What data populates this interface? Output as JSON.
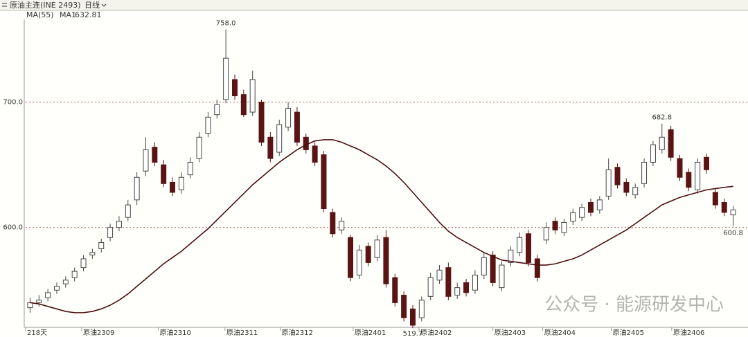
{
  "header": {
    "title": "原油主连(INE 2493)",
    "period": "日线"
  },
  "chart_data": {
    "type": "candlestick",
    "indicator": "MA(55)",
    "ma_name": "MA1",
    "watermark": "公众号 · 能源研发中心",
    "xlim": [
      0,
      80
    ],
    "ylim": [
      522,
      766
    ],
    "xticks": [
      {
        "value": 0,
        "label": "218天"
      },
      {
        "value": 6.3,
        "label": "原油2309"
      },
      {
        "value": 14.9,
        "label": "原油2310"
      },
      {
        "value": 22.4,
        "label": "原油2311"
      },
      {
        "value": 28.6,
        "label": "原油2312"
      },
      {
        "value": 36.8,
        "label": "原油2401"
      },
      {
        "value": 44.2,
        "label": "原油2402"
      },
      {
        "value": 52.5,
        "label": "原油2403"
      },
      {
        "value": 58.1,
        "label": "原油2404"
      },
      {
        "value": 65.8,
        "label": "原油2405"
      },
      {
        "value": 72.6,
        "label": "原油2406"
      }
    ],
    "yticks": [
      {
        "value": 700,
        "label": "700.0"
      },
      {
        "value": 600,
        "label": "600.0"
      }
    ],
    "grid": true,
    "up_color": "#ffffff",
    "down_color": "#5a1414",
    "open": [
      536,
      540,
      544,
      550,
      555,
      560,
      568,
      578,
      583,
      592,
      600,
      608,
      622,
      645,
      664,
      650,
      636,
      630,
      642,
      655,
      675,
      690,
      702,
      718,
      706,
      692,
      700,
      672,
      660,
      680,
      692,
      672,
      665,
      658,
      612,
      598,
      592,
      562,
      585,
      576,
      592,
      560,
      546,
      535,
      528,
      545,
      558,
      568,
      546,
      556,
      550,
      562,
      578,
      552,
      572,
      580,
      595,
      575,
      590,
      605,
      596,
      605,
      608,
      620,
      614,
      625,
      648,
      636,
      626,
      635,
      652,
      662,
      678,
      655,
      644,
      630,
      656,
      628,
      620,
      610
    ],
    "high": [
      544,
      546,
      551,
      556,
      561,
      568,
      578,
      583,
      591,
      603,
      609,
      622,
      644,
      672,
      668,
      654,
      640,
      644,
      656,
      676,
      692,
      702,
      758,
      722,
      710,
      725,
      702,
      676,
      686,
      700,
      696,
      675,
      668,
      661,
      615,
      608,
      594,
      586,
      588,
      594,
      598,
      563,
      549,
      538,
      545,
      564,
      570,
      572,
      556,
      559,
      566,
      580,
      581,
      573,
      585,
      596,
      598,
      578,
      604,
      608,
      607,
      615,
      619,
      623,
      625,
      655,
      651,
      639,
      635,
      655,
      669,
      682.8,
      681,
      658,
      647,
      655,
      659,
      631,
      623,
      617
    ],
    "low": [
      532,
      537,
      541,
      547,
      552,
      557,
      565,
      575,
      580,
      589,
      597,
      605,
      618,
      641,
      649,
      632,
      625,
      627,
      639,
      652,
      672,
      687,
      699,
      702,
      688,
      689,
      665,
      652,
      657,
      677,
      665,
      659,
      649,
      612,
      592,
      595,
      557,
      559,
      569,
      573,
      552,
      537,
      525,
      519.7,
      525,
      542,
      555,
      542,
      543,
      545,
      547,
      559,
      553,
      549,
      569,
      577,
      569,
      557,
      587,
      595,
      593,
      602,
      605,
      609,
      611,
      622,
      631,
      625,
      623,
      632,
      649,
      659,
      653,
      637,
      629,
      627,
      643,
      615,
      609,
      600.8
    ],
    "close": [
      540,
      542,
      548,
      553,
      558,
      565,
      575,
      580,
      588,
      600,
      605,
      618,
      640,
      662,
      652,
      635,
      628,
      640,
      652,
      672,
      688,
      698,
      735,
      705,
      690,
      718,
      668,
      655,
      682,
      695,
      668,
      662,
      652,
      615,
      595,
      605,
      560,
      582,
      572,
      590,
      555,
      540,
      528,
      522,
      542,
      560,
      566,
      545,
      552,
      548,
      562,
      576,
      556,
      570,
      582,
      592,
      572,
      560,
      600,
      598,
      604,
      612,
      616,
      612,
      622,
      646,
      634,
      628,
      632,
      652,
      666,
      672,
      656,
      640,
      632,
      652,
      646,
      618,
      612,
      614
    ],
    "ma": {
      "color": "#4a0e0e",
      "values": [
        540,
        539,
        537,
        535,
        533,
        532,
        532,
        533,
        535,
        538,
        542,
        547,
        553,
        559,
        565,
        571,
        576,
        581,
        587,
        593,
        599,
        606,
        613,
        620,
        627,
        634,
        640,
        646,
        652,
        657,
        662,
        666,
        669,
        670,
        670,
        668,
        665,
        662,
        658,
        654,
        649,
        643,
        636,
        628,
        620,
        612,
        604,
        597,
        592,
        588,
        584,
        580,
        577,
        574,
        573,
        572,
        571,
        570,
        570,
        571,
        573,
        575,
        578,
        582,
        586,
        590,
        594,
        598,
        603,
        608,
        613,
        618,
        621,
        624,
        626,
        628,
        630,
        631,
        632,
        632.81
      ]
    },
    "annotations": [
      {
        "text": "758.0",
        "x": 22,
        "y": 758,
        "side": "above"
      },
      {
        "text": "682.8",
        "x": 71,
        "y": 682.8,
        "side": "above"
      },
      {
        "text": "600.8",
        "x": 79,
        "y": 600.8,
        "side": "below"
      },
      {
        "text": "519.7",
        "x": 43,
        "y": 519.7,
        "side": "below"
      }
    ]
  }
}
